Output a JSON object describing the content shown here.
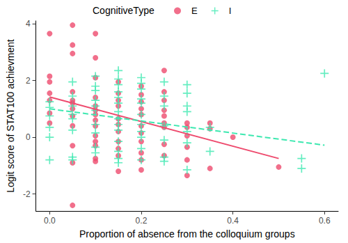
{
  "chart_data": {
    "type": "scatter",
    "x_label": "Proportion of absence from the colloquium groups",
    "y_label": "Logit score of STAT100 achievment",
    "legend_title": "CognitiveType",
    "legend": "top",
    "grid": false,
    "xlim": [
      -0.03,
      0.63
    ],
    "ylim": [
      -2.6,
      4.1
    ],
    "xticks": [
      {
        "value": 0,
        "label": "0.0"
      },
      0.2,
      0.4,
      0.6
    ],
    "yticks": [
      -2,
      0,
      2,
      4
    ],
    "series": [
      {
        "name": "E",
        "color": "#ee4b6e",
        "marker": "circle",
        "values": [
          [
            0,
            3.65
          ],
          [
            0,
            2.15
          ],
          [
            0,
            1.95
          ],
          [
            0,
            1.55
          ],
          [
            0,
            1.3
          ],
          [
            0,
            0.85
          ],
          [
            0,
            0.5
          ],
          [
            0.05,
            3.95
          ],
          [
            0.05,
            3.25
          ],
          [
            0.05,
            2.95
          ],
          [
            0.05,
            1.6
          ],
          [
            0.05,
            1.3
          ],
          [
            0.05,
            1.2
          ],
          [
            0.05,
            1.0
          ],
          [
            0.05,
            0.75
          ],
          [
            0.05,
            0.4
          ],
          [
            0.05,
            -0.3
          ],
          [
            0.05,
            -0.9
          ],
          [
            0.05,
            -2.4
          ],
          [
            0.1,
            3.65
          ],
          [
            0.1,
            2.8
          ],
          [
            0.1,
            2.1
          ],
          [
            0.1,
            1.4
          ],
          [
            0.1,
            1.1
          ],
          [
            0.1,
            0.95
          ],
          [
            0.1,
            0.8
          ],
          [
            0.1,
            0.6
          ],
          [
            0.1,
            0.4
          ],
          [
            0.1,
            0.05
          ],
          [
            0.1,
            -0.15
          ],
          [
            0.1,
            -0.3
          ],
          [
            0.1,
            -0.75
          ],
          [
            0.1,
            -0.85
          ],
          [
            0.15,
            1.95
          ],
          [
            0.15,
            1.55
          ],
          [
            0.15,
            1.3
          ],
          [
            0.15,
            1.1
          ],
          [
            0.15,
            0.65
          ],
          [
            0.15,
            0.45
          ],
          [
            0.15,
            0.2
          ],
          [
            0.15,
            -0.15
          ],
          [
            0.15,
            -0.4
          ],
          [
            0.15,
            -0.65
          ],
          [
            0.15,
            -1.2
          ],
          [
            0.2,
            1.8
          ],
          [
            0.2,
            1.5
          ],
          [
            0.2,
            1.25
          ],
          [
            0.2,
            1.0
          ],
          [
            0.2,
            0.8
          ],
          [
            0.2,
            0.4
          ],
          [
            0.2,
            0.15
          ],
          [
            0.2,
            -0.15
          ],
          [
            0.2,
            -0.55
          ],
          [
            0.2,
            -0.8
          ],
          [
            0.2,
            -1.15
          ],
          [
            0.25,
            2.35
          ],
          [
            0.25,
            1.6
          ],
          [
            0.25,
            1.3
          ],
          [
            0.25,
            0.95
          ],
          [
            0.25,
            0.75
          ],
          [
            0.25,
            0.5
          ],
          [
            0.25,
            0.35
          ],
          [
            0.25,
            -0.25
          ],
          [
            0.25,
            -0.65
          ],
          [
            0.3,
            0.5
          ],
          [
            0.3,
            0.35
          ],
          [
            0.3,
            0.05
          ],
          [
            0.3,
            -0.35
          ],
          [
            0.3,
            -0.8
          ],
          [
            0.3,
            -1.35
          ],
          [
            0.35,
            0.5
          ],
          [
            0.35,
            0.3
          ],
          [
            0.35,
            -1.1
          ],
          [
            0.4,
            0.0
          ],
          [
            0.5,
            -1.05
          ]
        ],
        "fit": {
          "x": [
            0,
            0.5
          ],
          "values": [
            1.42,
            -0.75
          ],
          "line_style": "solid"
        }
      },
      {
        "name": "I",
        "color": "#3de8b0",
        "marker": "cross",
        "values": [
          [
            0,
            1.25
          ],
          [
            0,
            1.05
          ],
          [
            0,
            0.75
          ],
          [
            0,
            0.35
          ],
          [
            0,
            0.0
          ],
          [
            0,
            -0.8
          ],
          [
            0.05,
            1.95
          ],
          [
            0.05,
            1.45
          ],
          [
            0.05,
            1.1
          ],
          [
            0.05,
            0.8
          ],
          [
            0.05,
            0.65
          ],
          [
            0.05,
            0.25
          ],
          [
            0.05,
            -0.7
          ],
          [
            0.05,
            -0.8
          ],
          [
            0.1,
            2.15
          ],
          [
            0.1,
            1.8
          ],
          [
            0.1,
            1.65
          ],
          [
            0.1,
            1.3
          ],
          [
            0.1,
            1.1
          ],
          [
            0.1,
            0.95
          ],
          [
            0.1,
            0.45
          ],
          [
            0.1,
            0.15
          ],
          [
            0.1,
            -0.35
          ],
          [
            0.1,
            -0.55
          ],
          [
            0.15,
            2.35
          ],
          [
            0.15,
            2.05
          ],
          [
            0.15,
            1.85
          ],
          [
            0.15,
            1.6
          ],
          [
            0.15,
            1.4
          ],
          [
            0.15,
            1.2
          ],
          [
            0.15,
            0.9
          ],
          [
            0.15,
            0.65
          ],
          [
            0.15,
            0.45
          ],
          [
            0.15,
            0.25
          ],
          [
            0.15,
            -0.15
          ],
          [
            0.15,
            -0.5
          ],
          [
            0.15,
            -0.75
          ],
          [
            0.15,
            -0.9
          ],
          [
            0.2,
            2.1
          ],
          [
            0.2,
            1.9
          ],
          [
            0.2,
            1.7
          ],
          [
            0.2,
            1.35
          ],
          [
            0.2,
            1.2
          ],
          [
            0.2,
            0.8
          ],
          [
            0.2,
            0.45
          ],
          [
            0.2,
            0.2
          ],
          [
            0.2,
            0.0
          ],
          [
            0.2,
            -0.4
          ],
          [
            0.2,
            -0.8
          ],
          [
            0.25,
            1.95
          ],
          [
            0.25,
            1.45
          ],
          [
            0.25,
            1.1
          ],
          [
            0.25,
            0.4
          ],
          [
            0.25,
            -0.1
          ],
          [
            0.25,
            -0.7
          ],
          [
            0.25,
            -0.85
          ],
          [
            0.3,
            1.85
          ],
          [
            0.3,
            1.55
          ],
          [
            0.3,
            1.1
          ],
          [
            0.3,
            0.9
          ],
          [
            0.3,
            0.2
          ],
          [
            0.3,
            -0.2
          ],
          [
            0.3,
            -1.15
          ],
          [
            0.35,
            0.35
          ],
          [
            0.35,
            -0.5
          ],
          [
            0.55,
            -0.75
          ],
          [
            0.55,
            -1.1
          ],
          [
            0.6,
            2.25
          ]
        ],
        "fit": {
          "x": [
            0,
            0.6
          ],
          "values": [
            1.0,
            -0.28
          ],
          "line_style": "dashed"
        }
      }
    ]
  }
}
